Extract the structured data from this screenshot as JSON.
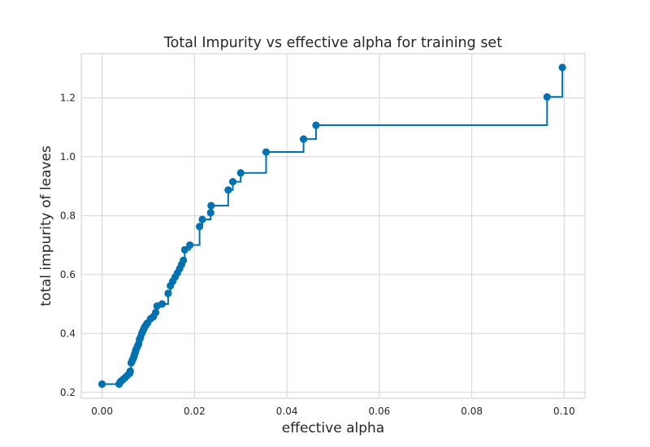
{
  "chart_data": {
    "type": "line",
    "title": "Total Impurity vs effective alpha for training set",
    "xlabel": "effective alpha",
    "ylabel": "total impurity of leaves",
    "xlim": [
      -0.0045,
      0.1045
    ],
    "ylim": [
      0.18,
      1.35
    ],
    "xticks": [
      0.0,
      0.02,
      0.04,
      0.06,
      0.08,
      0.1
    ],
    "xtick_labels": [
      "0.00",
      "0.02",
      "0.04",
      "0.06",
      "0.08",
      "0.10"
    ],
    "yticks": [
      0.2,
      0.4,
      0.6,
      0.8,
      1.0,
      1.2
    ],
    "ytick_labels": [
      "0.2",
      "0.4",
      "0.6",
      "0.8",
      "1.0",
      "1.2"
    ],
    "grid": true,
    "drawstyle": "steps-post",
    "marker": "circle",
    "colors": {
      "series": "#0072b2",
      "grid": "#d5d5d5",
      "background": "#ffffff"
    },
    "series": [
      {
        "x": [
          0.0,
          0.0037,
          0.0039,
          0.0041,
          0.0045,
          0.005,
          0.0055,
          0.006,
          0.0061,
          0.0063,
          0.0065,
          0.0067,
          0.0069,
          0.007,
          0.0072,
          0.0073,
          0.0075,
          0.0077,
          0.0079,
          0.0081,
          0.0083,
          0.0086,
          0.0088,
          0.009,
          0.0092,
          0.0095,
          0.0098,
          0.0105,
          0.0111,
          0.0116,
          0.0119,
          0.013,
          0.0143,
          0.0148,
          0.0153,
          0.0158,
          0.0163,
          0.0168,
          0.0172,
          0.0176,
          0.0179,
          0.019,
          0.0211,
          0.0217,
          0.0235,
          0.0236,
          0.0273,
          0.0283,
          0.03,
          0.0355,
          0.0436,
          0.0463,
          0.0963,
          0.0996
        ],
        "y": [
          0.228,
          0.228,
          0.234,
          0.238,
          0.243,
          0.25,
          0.258,
          0.265,
          0.272,
          0.3,
          0.307,
          0.314,
          0.321,
          0.328,
          0.336,
          0.343,
          0.35,
          0.357,
          0.364,
          0.379,
          0.386,
          0.4,
          0.407,
          0.414,
          0.421,
          0.428,
          0.435,
          0.45,
          0.457,
          0.471,
          0.493,
          0.5,
          0.536,
          0.562,
          0.577,
          0.591,
          0.605,
          0.62,
          0.634,
          0.648,
          0.684,
          0.7,
          0.763,
          0.787,
          0.81,
          0.834,
          0.887,
          0.915,
          0.945,
          1.016,
          1.06,
          1.107,
          1.203,
          1.303
        ]
      }
    ]
  }
}
